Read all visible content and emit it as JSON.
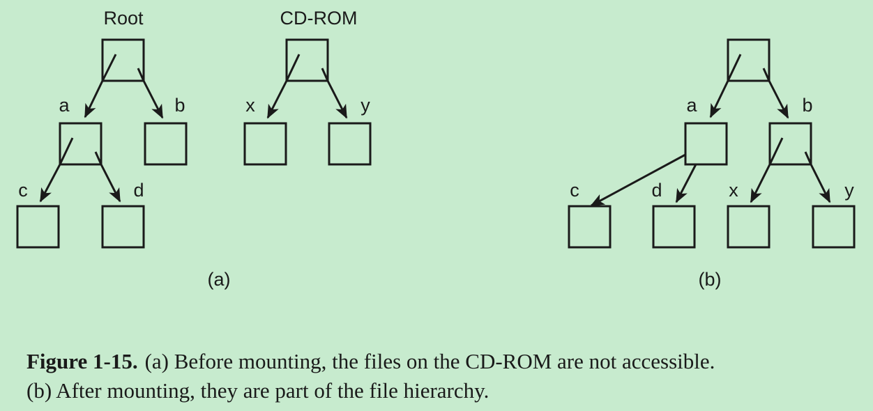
{
  "diagram_a": {
    "subcaption": "(a)",
    "root_label": "Root",
    "cdrom_label": "CD-ROM",
    "labels": {
      "a": "a",
      "b": "b",
      "c": "c",
      "d": "d",
      "x": "x",
      "y": "y"
    }
  },
  "diagram_b": {
    "subcaption": "(b)",
    "labels": {
      "a": "a",
      "b": "b",
      "c": "c",
      "d": "d",
      "x": "x",
      "y": "y"
    }
  },
  "caption": {
    "figure_number": "Figure 1-15.",
    "line1": "(a) Before mounting, the files on the CD-ROM are not accessible.",
    "line2": "(b) After mounting, they are part of the file hierarchy."
  }
}
